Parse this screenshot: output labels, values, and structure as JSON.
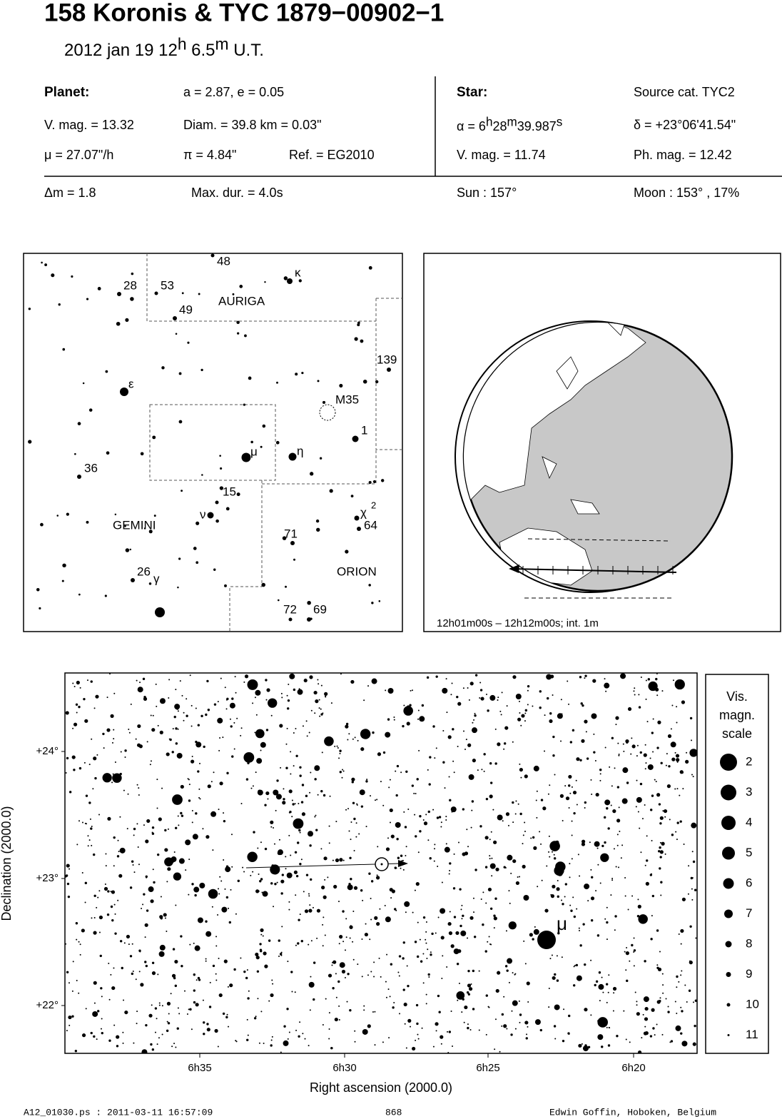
{
  "header": {
    "title": "158 Koronis  &  TYC 1879−00902−1",
    "date": [
      "2012 jan 19  12",
      "h",
      " 6.5",
      "m",
      " U.T."
    ]
  },
  "planet": {
    "label": "Planet:",
    "items": [
      "a = 2.87, e = 0.05",
      "V. mag. = 13.32",
      "Diam. = 39.8 km = 0.03\"",
      "μ =  27.07\"/h",
      "π =  4.84\"",
      "Ref. = EG2010"
    ]
  },
  "star": {
    "label": "Star:",
    "source": "Source cat.  TYC2",
    "alpha": [
      "α =  6",
      "h",
      "28",
      "m",
      "39.987",
      "s"
    ],
    "items": [
      "δ = +23°06'41.54\"",
      "V. mag. = 11.74",
      "Ph. mag. = 12.42"
    ]
  },
  "event": [
    "Δm = 1.8",
    "Max. dur. = 4.0s",
    "Sun : 157°",
    "Moon : 153° , 17%"
  ],
  "finder": {
    "labels": [
      "48",
      "κ",
      "28",
      "53",
      "49",
      "AURIGA",
      "139",
      "ε",
      "M35",
      "1",
      "μ",
      "η",
      "36",
      "15",
      "ν",
      "χ",
      "2",
      "64",
      "GEMINI",
      "71",
      "26",
      "ORION",
      "γ",
      "72",
      "69"
    ]
  },
  "globe": {
    "caption": "12h01m00s – 12h12m00s; int.  1m"
  },
  "starmap": {
    "yticks": [
      "+24°",
      "+23°",
      "+22°"
    ],
    "xticks": [
      "6h35",
      "6h30",
      "6h25",
      "6h20"
    ],
    "xlabel": "Right ascension (2000.0)",
    "ylabel": "Declination (2000.0)",
    "star_label": "μ",
    "legend": {
      "title": [
        "Vis.",
        "magn.",
        "scale"
      ],
      "items": [
        "2",
        "3",
        "4",
        "5",
        "6",
        "7",
        "8",
        "9",
        "10",
        "11"
      ]
    }
  },
  "footer": [
    "A12_01030.ps : 2011-03-11 16:57:09",
    "868",
    "Edwin Goffin, Hoboken, Belgium"
  ]
}
